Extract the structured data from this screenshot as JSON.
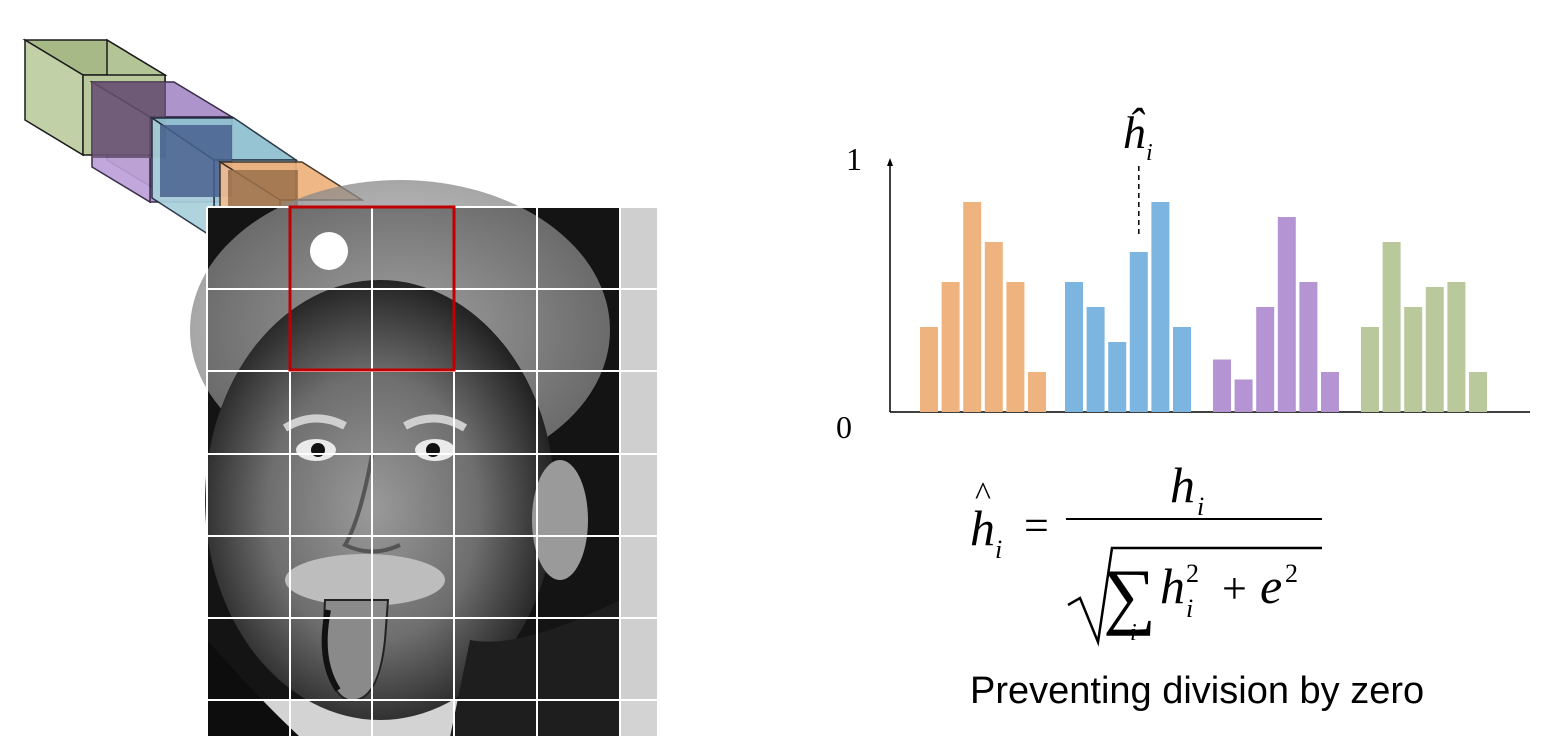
{
  "colors": {
    "orange": "#EFB37F",
    "blue": "#7CB5E0",
    "purple": "#B494D2",
    "green": "#B9C99B",
    "highlight_box": "#C00000",
    "grid_line": "#ffffff"
  },
  "icons": {
    "keypoint": "white-circle",
    "feature_stack": "colored-cubes"
  },
  "chart_data": {
    "type": "bar",
    "ylim": [
      0,
      1
    ],
    "ytick_labels": [
      "1",
      "0"
    ],
    "annotation": "ĥ",
    "annotation_subscript": "i",
    "annotation_target": {
      "series": 1,
      "index": 3
    },
    "series": [
      {
        "color": "#EFB37F",
        "values": [
          0.34,
          0.52,
          0.84,
          0.68,
          0.52,
          0.16
        ]
      },
      {
        "color": "#7CB5E0",
        "values": [
          0.52,
          0.42,
          0.28,
          0.64,
          0.84,
          0.34
        ]
      },
      {
        "color": "#B494D2",
        "values": [
          0.21,
          0.13,
          0.42,
          0.78,
          0.52,
          0.16
        ]
      },
      {
        "color": "#B9C99B",
        "values": [
          0.34,
          0.68,
          0.42,
          0.5,
          0.52,
          0.16
        ]
      }
    ]
  },
  "formula": {
    "lhs_base": "h",
    "hat": "^",
    "subscript": "i",
    "equals": "=",
    "numerator_base": "h",
    "numerator_sub": "i",
    "sum_symbol": "∑",
    "sum_index": "i",
    "term_base": "h",
    "term_sub": "i",
    "term_sup": "2",
    "plus": "+",
    "epsilon_base": "e",
    "epsilon_sup": "2"
  },
  "caption": "Preventing division by zero"
}
